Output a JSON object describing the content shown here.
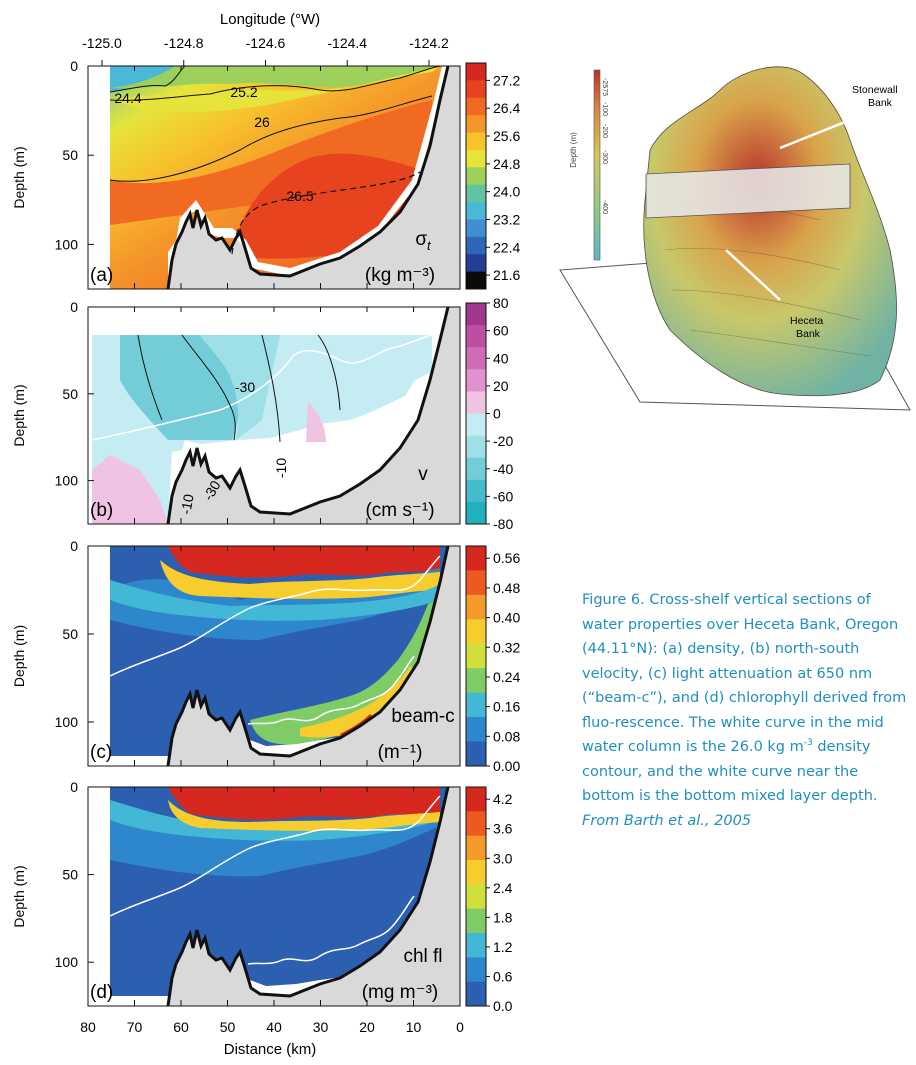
{
  "figure": {
    "top_axis": {
      "label": "Longitude (°W)",
      "ticks": [
        {
          "value": -125.0,
          "label": "-125.0"
        },
        {
          "value": -124.8,
          "label": "-124.8"
        },
        {
          "value": -124.6,
          "label": "-124.6"
        },
        {
          "value": -124.4,
          "label": "-124.4"
        },
        {
          "value": -124.2,
          "label": "-124.2"
        }
      ]
    },
    "bottom_axis": {
      "label": "Distance (km)",
      "ticks": [
        "80",
        "70",
        "60",
        "50",
        "40",
        "30",
        "20",
        "10",
        "0"
      ]
    },
    "depth_label": "Depth (m)",
    "depth_ticks": [
      "0",
      "50",
      "100"
    ]
  },
  "chart_data": [
    {
      "type": "heatmap",
      "panel_letter": "(a)",
      "variable": "σ",
      "variable_sub": "t",
      "units": "(kg m⁻³)",
      "xlabel": "Distance (km)",
      "ylabel": "Depth (m)",
      "xlim": [
        80,
        0
      ],
      "ylim": [
        0,
        125
      ],
      "colorbar_ticks": [
        "27.2",
        "26.4",
        "25.6",
        "24.8",
        "24.0",
        "23.2",
        "22.4",
        "21.6"
      ],
      "colors": [
        "#d7281f",
        "#e8431f",
        "#f06a22",
        "#f5962a",
        "#f7c22c",
        "#e6e43a",
        "#9cd05a",
        "#62c2a3",
        "#4cb8d8",
        "#3f8fd1",
        "#2f66b8",
        "#263f96",
        "#0b0b0b"
      ],
      "contour_labels": [
        "24.4",
        "25.2",
        "26",
        "26.5"
      ]
    },
    {
      "type": "heatmap",
      "panel_letter": "(b)",
      "variable": "v",
      "units": "(cm s⁻¹)",
      "xlabel": "Distance (km)",
      "ylabel": "Depth (m)",
      "xlim": [
        80,
        0
      ],
      "ylim": [
        0,
        125
      ],
      "colorbar_ticks": [
        "80",
        "60",
        "40",
        "20",
        "0",
        "-20",
        "-40",
        "-60",
        "-80"
      ],
      "colors": [
        "#a2388e",
        "#bd4ea3",
        "#d06bb8",
        "#df92cc",
        "#f0c3e2",
        "#c5ecf2",
        "#9fe0e8",
        "#72cdd9",
        "#44bcc9",
        "#1fb1bc"
      ],
      "contour_labels": [
        "-30",
        "-10",
        "-10",
        "-30"
      ]
    },
    {
      "type": "heatmap",
      "panel_letter": "(c)",
      "variable": "beam-c",
      "units": "(m⁻¹)",
      "xlabel": "Distance (km)",
      "ylabel": "Depth (m)",
      "xlim": [
        80,
        0
      ],
      "ylim": [
        0,
        125
      ],
      "colorbar_ticks": [
        "0.56",
        "0.48",
        "0.40",
        "0.32",
        "0.24",
        "0.16",
        "0.08",
        "0.00"
      ],
      "colors": [
        "#d7281f",
        "#ec5a22",
        "#f49a2a",
        "#f6cd2c",
        "#cfe03c",
        "#7fcb66",
        "#42b7d6",
        "#2e86cc",
        "#2c5fb0"
      ]
    },
    {
      "type": "heatmap",
      "panel_letter": "(d)",
      "variable": "chl fl",
      "units": "(mg m⁻³)",
      "xlabel": "Distance (km)",
      "ylabel": "Depth (m)",
      "xlim": [
        80,
        0
      ],
      "ylim": [
        0,
        125
      ],
      "colorbar_ticks": [
        "4.2",
        "3.6",
        "3.0",
        "2.4",
        "1.8",
        "1.2",
        "0.6",
        "0.0"
      ],
      "colors": [
        "#d7281f",
        "#ec5a22",
        "#f49a2a",
        "#f6cd2c",
        "#cfe03c",
        "#7fcb66",
        "#42b7d6",
        "#2e86cc",
        "#2c5fb0"
      ]
    }
  ],
  "diagram": {
    "scale_label": "Depth (m)",
    "scale_ticks": [
      "-25",
      "-75",
      "-100",
      "-200",
      "-300",
      "-400"
    ],
    "label_stonewall": "Stonewall",
    "label_stonewall_2": "Bank",
    "label_heceta": "Heceta",
    "label_heceta_2": "Bank"
  },
  "caption": {
    "main": "Figure 6. Cross-shelf vertical sections of water properties over Heceta Bank, Oregon (44.11°N): (a) density, (b) north-south velocity, (c) light attenuation at 650 nm (“beam-c”), and (d) chlorophyll derived from fluo-rescence. The white curve in the mid water column is the 26.0 kg m",
    "sup": "-3",
    "main2": " density contour, and the white curve near the bottom is the bottom mixed layer depth. ",
    "credit": "From Barth et al., 2005"
  }
}
